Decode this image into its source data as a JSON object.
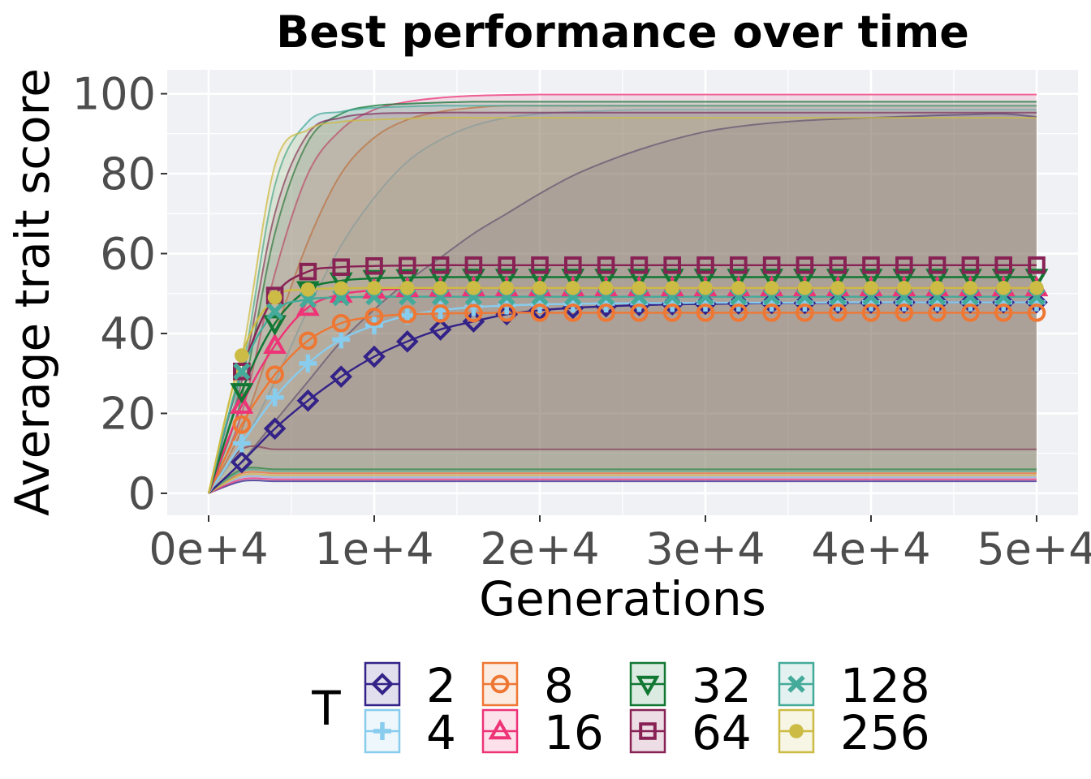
{
  "chart_data": {
    "type": "line",
    "title": "Best performance over time",
    "xlabel": "Generations",
    "ylabel": "Average trait score",
    "xlim": [
      -2500,
      52500
    ],
    "ylim": [
      -5.5,
      106
    ],
    "x_ticks": [
      0,
      10000,
      20000,
      30000,
      40000,
      50000
    ],
    "x_tick_labels": [
      "0e+4",
      "1e+4",
      "2e+4",
      "3e+4",
      "4e+4",
      "5e+4"
    ],
    "y_ticks": [
      0,
      20,
      40,
      60,
      80,
      100
    ],
    "y_tick_labels": [
      "0",
      "20",
      "40",
      "60",
      "80",
      "100"
    ],
    "grid": true,
    "legend_title": "T",
    "legend_position": "bottom",
    "x": [
      0,
      2000,
      4000,
      6000,
      8000,
      10000,
      12000,
      14000,
      16000,
      18000,
      20000,
      22000,
      24000,
      26000,
      28000,
      30000,
      32000,
      34000,
      36000,
      38000,
      40000,
      42000,
      44000,
      46000,
      48000,
      50000
    ],
    "series": [
      {
        "name": "2",
        "color": "#332288",
        "marker": "diamond",
        "values": [
          0,
          7.8,
          16.2,
          23.2,
          29.2,
          34.2,
          38.0,
          41.0,
          43.0,
          44.8,
          45.8,
          46.4,
          46.8,
          47.1,
          47.3,
          47.4,
          47.5,
          47.6,
          47.6,
          47.7,
          47.7,
          47.8,
          47.8,
          47.8,
          47.8,
          47.8
        ],
        "upper": [
          0,
          8,
          18,
          28,
          38,
          46,
          53,
          59,
          65,
          70,
          75,
          79.5,
          83,
          86,
          88.5,
          90.5,
          91.8,
          92.7,
          93.3,
          93.7,
          94.0,
          94.3,
          94.6,
          94.8,
          95.0,
          94.2
        ],
        "lower": [
          0,
          3,
          3,
          3,
          3,
          3,
          3,
          3,
          3,
          3,
          3,
          3,
          3,
          3,
          3,
          3,
          3,
          3,
          3,
          3,
          3,
          3,
          3,
          3,
          3,
          3
        ]
      },
      {
        "name": "4",
        "color": "#88CCEE",
        "marker": "cross",
        "values": [
          0,
          12.5,
          24.0,
          32.5,
          38.5,
          42.0,
          44.5,
          45.8,
          46.6,
          47.0,
          47.3,
          47.4,
          47.5,
          47.6,
          47.6,
          47.7,
          47.7,
          47.7,
          47.7,
          47.8,
          47.8,
          47.8,
          47.8,
          47.8,
          47.8,
          47.8
        ],
        "upper": [
          0,
          12,
          28,
          46,
          62,
          74,
          83,
          88.5,
          92,
          94,
          95,
          95.5,
          95.8,
          96,
          96,
          96,
          96,
          96,
          96,
          96,
          96,
          96,
          96,
          96,
          96,
          96
        ],
        "lower": [
          0,
          4,
          4,
          4,
          4,
          4,
          4,
          4,
          4,
          4,
          4,
          4,
          4,
          4,
          4,
          4,
          4,
          4,
          4,
          4,
          4,
          4,
          4,
          4,
          4,
          4
        ]
      },
      {
        "name": "8",
        "color": "#EE7733",
        "marker": "circle-open",
        "values": [
          0,
          17.2,
          29.7,
          38.2,
          42.6,
          44.2,
          44.8,
          45.0,
          45.1,
          45.2,
          45.2,
          45.2,
          45.2,
          45.2,
          45.2,
          45.2,
          45.2,
          45.2,
          45.2,
          45.2,
          45.2,
          45.2,
          45.2,
          45.2,
          45.2,
          45.2
        ],
        "upper": [
          0,
          16,
          40,
          63,
          80,
          89,
          93.5,
          95.5,
          96.5,
          97,
          97,
          97,
          97,
          97,
          97,
          97,
          97,
          97,
          97,
          97,
          97,
          97,
          97,
          97,
          97,
          97
        ],
        "lower": [
          0,
          5,
          5,
          5,
          5,
          5,
          5,
          5,
          5,
          5,
          5,
          5,
          5,
          5,
          5,
          5,
          5,
          5,
          5,
          5,
          5,
          5,
          5,
          5,
          5,
          5
        ]
      },
      {
        "name": "16",
        "color": "#EE3377",
        "marker": "triangle-up",
        "values": [
          0,
          22.0,
          37.0,
          46.5,
          49.8,
          50.8,
          51.2,
          51.3,
          51.4,
          51.4,
          51.4,
          51.4,
          51.4,
          51.4,
          51.4,
          51.4,
          51.4,
          51.4,
          51.4,
          51.4,
          51.4,
          51.4,
          51.4,
          51.4,
          51.4,
          51.4
        ],
        "upper": [
          0,
          20,
          55,
          80,
          91,
          96,
          98,
          99,
          99.5,
          99.7,
          99.8,
          99.8,
          99.8,
          99.8,
          99.8,
          99.8,
          99.8,
          99.8,
          99.8,
          99.8,
          99.8,
          99.8,
          99.8,
          99.8,
          99.8,
          99.8
        ],
        "lower": [
          0,
          3.5,
          3.5,
          3.5,
          3.5,
          3.5,
          3.5,
          3.5,
          3.5,
          3.5,
          3.5,
          3.5,
          3.5,
          3.5,
          3.5,
          3.5,
          3.5,
          3.5,
          3.5,
          3.5,
          3.5,
          3.5,
          3.5,
          3.5,
          3.5,
          3.5
        ]
      },
      {
        "name": "32",
        "color": "#117733",
        "marker": "triangle-down",
        "values": [
          0,
          25.5,
          42.5,
          51.0,
          53.2,
          53.8,
          54.0,
          54.1,
          54.1,
          54.1,
          54.1,
          54.1,
          54.1,
          54.1,
          54.1,
          54.1,
          54.1,
          54.1,
          54.1,
          54.1,
          54.1,
          54.1,
          54.1,
          54.1,
          54.1,
          54.1
        ],
        "upper": [
          0,
          24,
          65,
          88,
          95,
          97,
          97.5,
          97.8,
          98,
          98,
          98,
          98,
          98,
          98,
          98,
          98,
          98,
          98,
          98,
          98,
          98,
          98,
          98,
          98,
          98,
          98
        ],
        "lower": [
          0,
          6,
          6,
          6,
          6,
          6,
          6,
          6,
          6,
          6,
          6,
          6,
          6,
          6,
          6,
          6,
          6,
          6,
          6,
          6,
          6,
          6,
          6,
          6,
          6,
          6
        ]
      },
      {
        "name": "64",
        "color": "#882255",
        "marker": "square-open",
        "values": [
          0,
          30.5,
          49.5,
          55.5,
          56.6,
          56.9,
          57.0,
          57.1,
          57.1,
          57.1,
          57.1,
          57.1,
          57.1,
          57.1,
          57.1,
          57.1,
          57.1,
          57.1,
          57.1,
          57.1,
          57.1,
          57.1,
          57.1,
          57.1,
          57.1,
          57.1
        ],
        "upper": [
          0,
          28,
          70,
          90,
          94,
          95,
          95.2,
          95.3,
          95.3,
          95.3,
          95.3,
          95.3,
          95.3,
          95.3,
          95.3,
          95.3,
          95.3,
          95.3,
          95.3,
          95.3,
          95.3,
          95.3,
          95.3,
          95.3,
          95.3,
          95.3
        ],
        "lower": [
          0,
          11,
          11,
          11,
          11,
          11,
          11,
          11,
          11,
          11,
          11,
          11,
          11,
          11,
          11,
          11,
          11,
          11,
          11,
          11,
          11,
          11,
          11,
          11,
          11,
          11
        ]
      },
      {
        "name": "128",
        "color": "#44AA99",
        "marker": "x",
        "values": [
          0,
          30.5,
          45.5,
          48.5,
          49.0,
          49.2,
          49.2,
          49.2,
          49.2,
          49.2,
          49.2,
          49.2,
          49.2,
          49.2,
          49.2,
          49.2,
          49.2,
          49.2,
          49.2,
          49.2,
          49.2,
          49.2,
          49.2,
          49.2,
          49.2,
          49.2
        ],
        "upper": [
          0,
          30,
          77,
          93,
          95.5,
          96.5,
          96.8,
          97,
          97,
          97,
          97,
          97,
          97,
          97,
          97,
          97,
          97,
          97,
          97,
          97,
          97,
          97,
          97,
          97,
          97,
          97
        ],
        "lower": [
          0,
          5.5,
          5.5,
          5.5,
          5.5,
          5.5,
          5.5,
          5.5,
          5.5,
          5.5,
          5.5,
          5.5,
          5.5,
          5.5,
          5.5,
          5.5,
          5.5,
          5.5,
          5.5,
          5.5,
          5.5,
          5.5,
          5.5,
          5.5,
          5.5,
          5.5
        ]
      },
      {
        "name": "256",
        "color": "#CCBB44",
        "marker": "circle",
        "values": [
          0,
          34.5,
          49.0,
          51.0,
          51.3,
          51.4,
          51.4,
          51.4,
          51.4,
          51.4,
          51.4,
          51.4,
          51.4,
          51.4,
          51.4,
          51.4,
          51.4,
          51.4,
          51.4,
          51.4,
          51.4,
          51.4,
          51.4,
          51.4,
          51.4,
          51.4
        ],
        "upper": [
          0,
          34,
          82,
          91,
          93,
          93.5,
          93.8,
          94,
          94,
          94,
          94,
          94,
          94,
          94,
          94,
          94,
          94,
          94,
          94,
          94,
          94,
          94,
          94,
          94,
          94,
          94
        ],
        "lower": [
          0,
          4.5,
          4.5,
          4.5,
          4.5,
          4.5,
          4.5,
          4.5,
          4.5,
          4.5,
          4.5,
          4.5,
          4.5,
          4.5,
          4.5,
          4.5,
          4.5,
          4.5,
          4.5,
          4.5,
          4.5,
          4.5,
          4.5,
          4.5,
          4.5,
          4.5
        ]
      }
    ]
  }
}
